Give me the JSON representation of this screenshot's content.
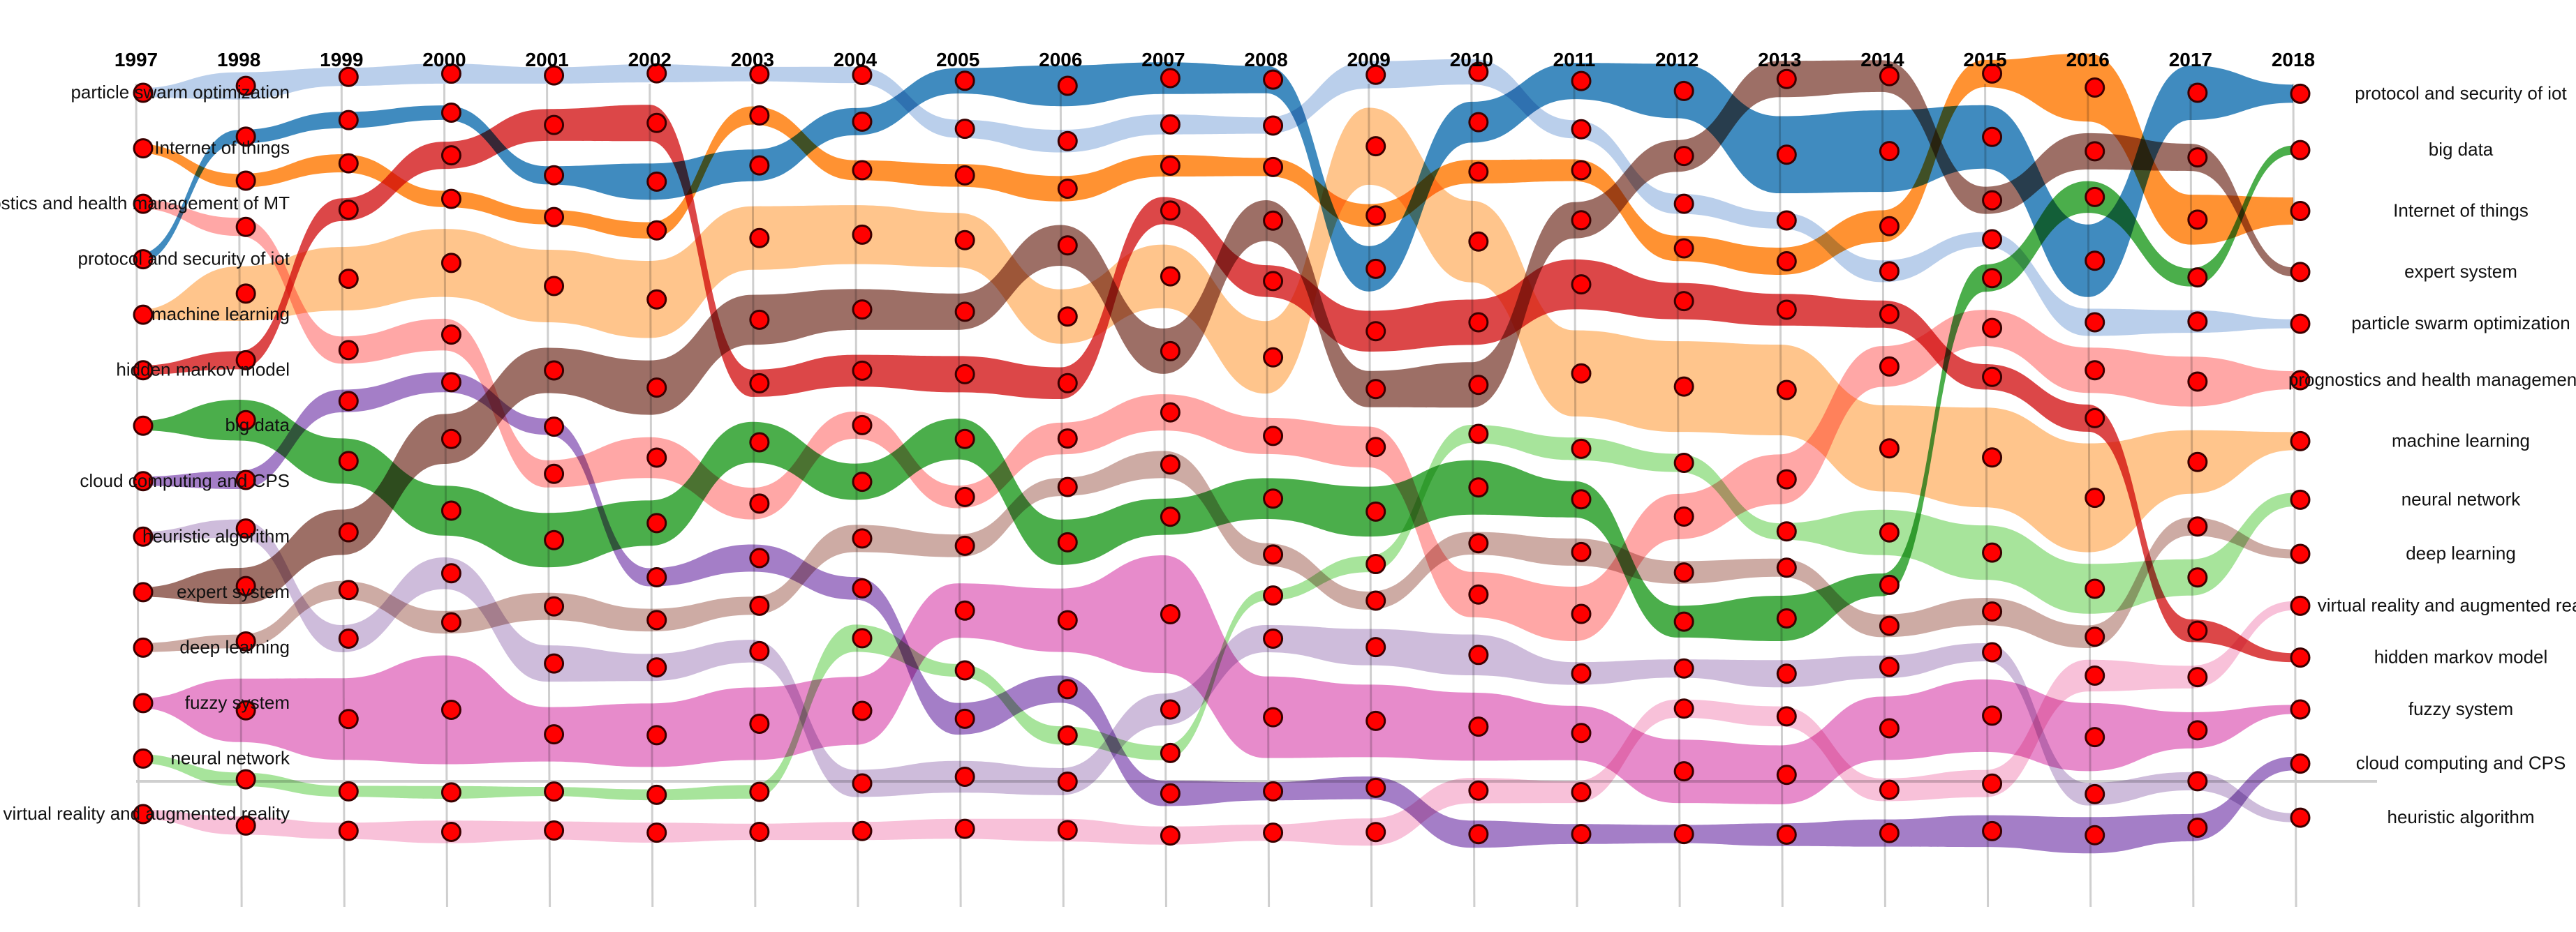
{
  "chart_data": {
    "type": "area",
    "subtype": "theme-river",
    "title": "",
    "xlabel": "",
    "ylabel": "",
    "categories": [
      "1997",
      "1998",
      "1999",
      "2000",
      "2001",
      "2002",
      "2003",
      "2004",
      "2005",
      "2006",
      "2007",
      "2008",
      "2009",
      "2010",
      "2011",
      "2012",
      "2013",
      "2014",
      "2015",
      "2016",
      "2017",
      "2018"
    ],
    "node_color": "#ff0000",
    "series": [
      {
        "name": "particle swarm optimization",
        "color": "#aec7e8",
        "values": [
          10,
          30,
          20,
          22,
          18,
          20,
          16,
          18,
          20,
          25,
          22,
          18,
          30,
          28,
          20,
          22,
          18,
          24,
          16,
          30,
          25,
          10
        ]
      },
      {
        "name": "Internet of things",
        "color": "#ff7f0e",
        "values": [
          10,
          15,
          20,
          18,
          16,
          18,
          20,
          22,
          25,
          28,
          24,
          20,
          25,
          26,
          24,
          28,
          30,
          35,
          30,
          75,
          55,
          30
        ]
      },
      {
        "name": "prognostics and health management of MT",
        "color": "#ff9896",
        "values": [
          10,
          20,
          30,
          35,
          30,
          45,
          35,
          30,
          25,
          35,
          40,
          40,
          45,
          50,
          60,
          50,
          55,
          45,
          40,
          50,
          55,
          20
        ]
      },
      {
        "name": "protocol and security of iot",
        "color": "#1f77b4",
        "values": [
          10,
          15,
          18,
          16,
          20,
          40,
          35,
          30,
          28,
          45,
          35,
          30,
          50,
          45,
          40,
          60,
          85,
          90,
          70,
          80,
          60,
          20
        ]
      },
      {
        "name": "machine learning",
        "color": "#ffbb78",
        "values": [
          10,
          60,
          70,
          75,
          80,
          85,
          70,
          65,
          60,
          60,
          70,
          80,
          85,
          90,
          95,
          100,
          100,
          95,
          110,
          120,
          70,
          20
        ]
      },
      {
        "name": "hidden markov model",
        "color": "#d62728",
        "values": [
          10,
          20,
          25,
          30,
          35,
          40,
          30,
          35,
          40,
          35,
          30,
          35,
          45,
          50,
          55,
          40,
          35,
          30,
          28,
          30,
          25,
          10
        ]
      },
      {
        "name": "big data",
        "color": "#2ca02c",
        "values": [
          10,
          45,
          50,
          55,
          60,
          50,
          45,
          40,
          45,
          50,
          40,
          45,
          55,
          60,
          40,
          35,
          50,
          25,
          30,
          35,
          20,
          10
        ]
      },
      {
        "name": "cloud computing and CPS",
        "color": "#9467bd",
        "values": [
          10,
          20,
          25,
          22,
          18,
          20,
          30,
          25,
          35,
          30,
          28,
          20,
          25,
          30,
          22,
          20,
          25,
          30,
          35,
          40,
          30,
          15
        ]
      },
      {
        "name": "heuristic algorithm",
        "color": "#c5b0d5",
        "values": [
          10,
          20,
          30,
          35,
          40,
          30,
          25,
          30,
          35,
          30,
          35,
          30,
          40,
          45,
          25,
          20,
          30,
          25,
          20,
          25,
          20,
          10
        ]
      },
      {
        "name": "expert system",
        "color": "#8c564b",
        "values": [
          10,
          40,
          50,
          55,
          50,
          60,
          55,
          45,
          40,
          45,
          50,
          45,
          40,
          50,
          40,
          35,
          40,
          35,
          30,
          40,
          30,
          10
        ]
      },
      {
        "name": "deep learning",
        "color": "#c49c94",
        "values": [
          10,
          15,
          20,
          25,
          30,
          25,
          20,
          30,
          25,
          20,
          30,
          25,
          20,
          25,
          30,
          25,
          20,
          25,
          30,
          25,
          20,
          10
        ]
      },
      {
        "name": "fuzzy system",
        "color": "#e377c2",
        "values": [
          10,
          70,
          90,
          120,
          60,
          70,
          80,
          75,
          60,
          70,
          130,
          90,
          80,
          75,
          60,
          70,
          65,
          70,
          80,
          75,
          40,
          10
        ]
      },
      {
        "name": "neural network",
        "color": "#98df8a",
        "values": [
          10,
          15,
          12,
          14,
          10,
          12,
          15,
          30,
          14,
          20,
          16,
          12,
          18,
          20,
          25,
          20,
          18,
          50,
          60,
          55,
          40,
          15
        ]
      },
      {
        "name": "virtual reality and augmented reality",
        "color": "#f7b6d2",
        "values": [
          10,
          20,
          18,
          25,
          20,
          22,
          18,
          20,
          22,
          25,
          20,
          18,
          30,
          28,
          24,
          20,
          22,
          25,
          30,
          35,
          25,
          10
        ]
      }
    ],
    "left_labels": [
      "particle swarm optimization",
      "Internet of things",
      "prognostics and health management of MT",
      "protocol and security of iot",
      "machine learning",
      "hidden markov model",
      "big data",
      "cloud computing and CPS",
      "heuristic algorithm",
      "expert system",
      "deep learning",
      "fuzzy system",
      "neural network",
      "virtual reality and augmented reality"
    ],
    "right_labels": [
      "Internet of things",
      "protocol and security of iot",
      "hidden markov model",
      "heuristic algorithm",
      "prognostics and health management of MT",
      "fuzzy system",
      "machine learning",
      "virtual reality and augmented reality",
      "cloud computing and CPS",
      "neural network",
      "expert system",
      "particle swarm optimization",
      "big data",
      "deep learning"
    ],
    "grid": true,
    "legend": "none"
  }
}
